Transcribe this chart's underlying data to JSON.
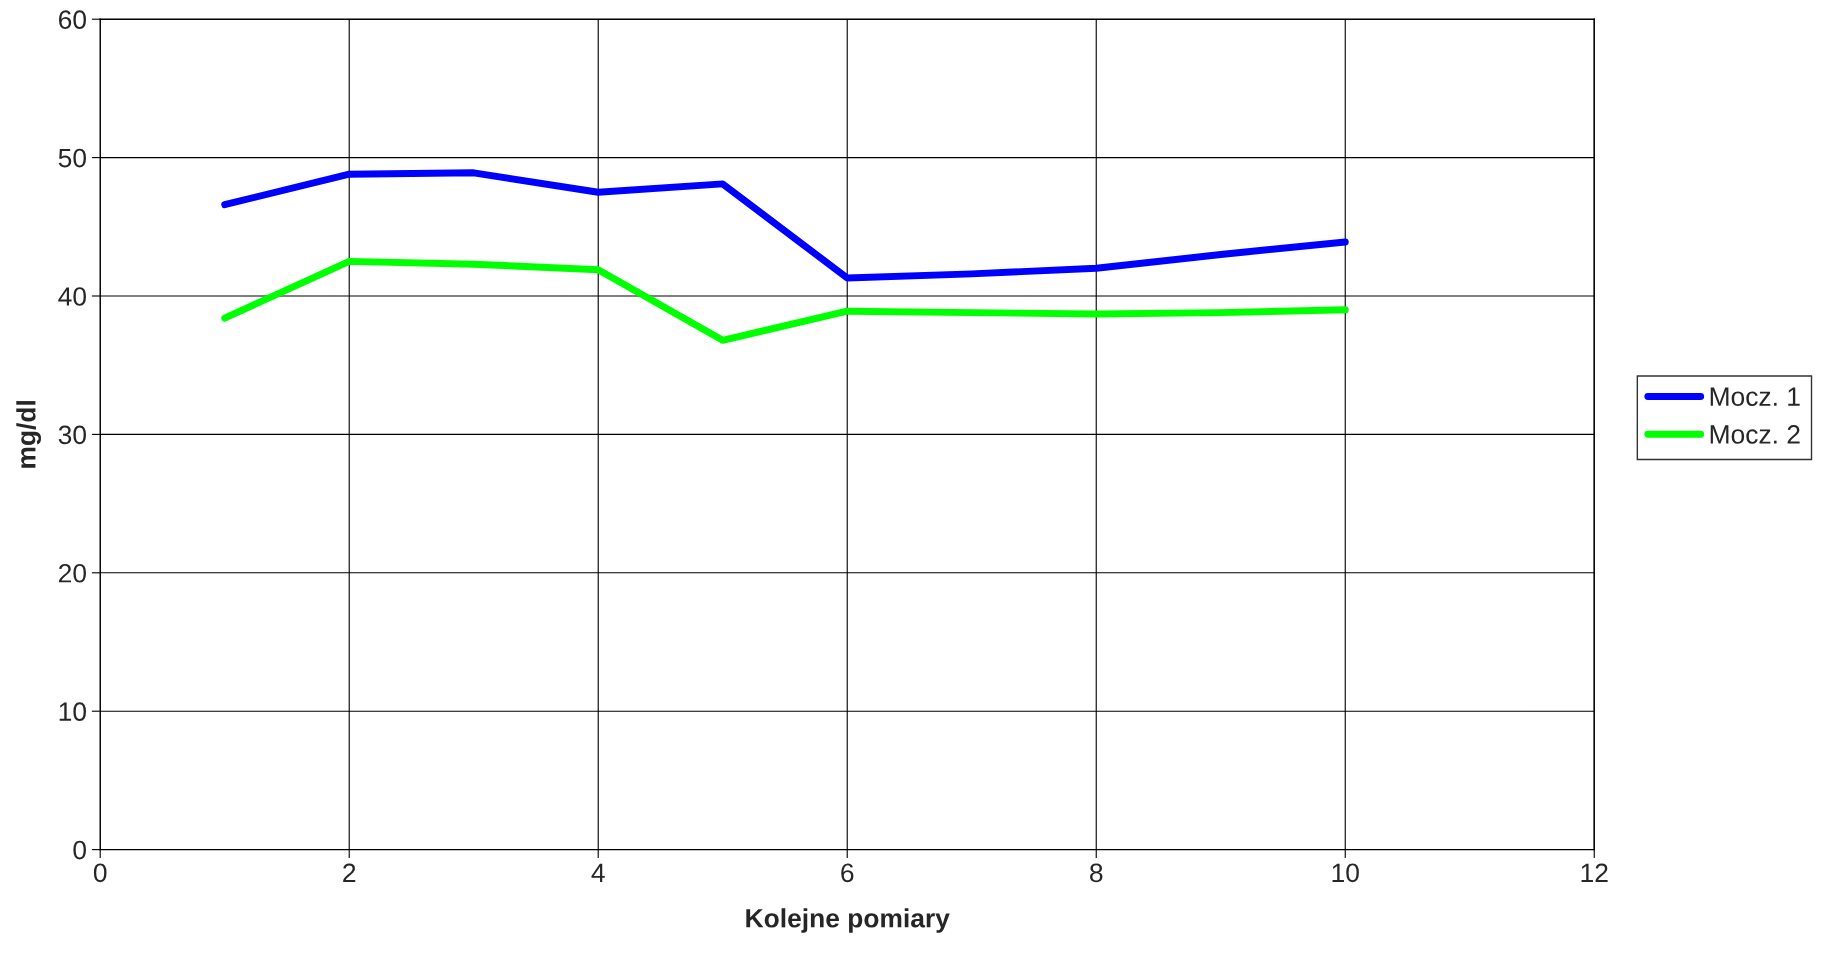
{
  "chart_data": {
    "type": "line",
    "xlabel": "Kolejne pomiary",
    "ylabel": "mg/dl",
    "x": [
      1,
      2,
      3,
      4,
      5,
      6,
      7,
      8,
      9,
      10
    ],
    "series": [
      {
        "name": "Mocz. 1",
        "color": "#0000ff",
        "values": [
          46.6,
          48.8,
          48.9,
          47.5,
          48.1,
          41.3,
          41.6,
          42.0,
          43.0,
          43.9
        ]
      },
      {
        "name": "Mocz. 2",
        "color": "#00ff00",
        "values": [
          38.4,
          42.5,
          42.3,
          41.9,
          36.8,
          38.9,
          38.8,
          38.7,
          38.8,
          39.0
        ]
      }
    ],
    "xlim": [
      0,
      12
    ],
    "xticks": [
      0,
      2,
      4,
      6,
      8,
      10,
      12
    ],
    "ylim": [
      0,
      60
    ],
    "yticks": [
      0,
      10,
      20,
      30,
      40,
      50,
      60
    ],
    "grid": true,
    "legend": "right",
    "marker": "none",
    "line_style": "solid"
  }
}
